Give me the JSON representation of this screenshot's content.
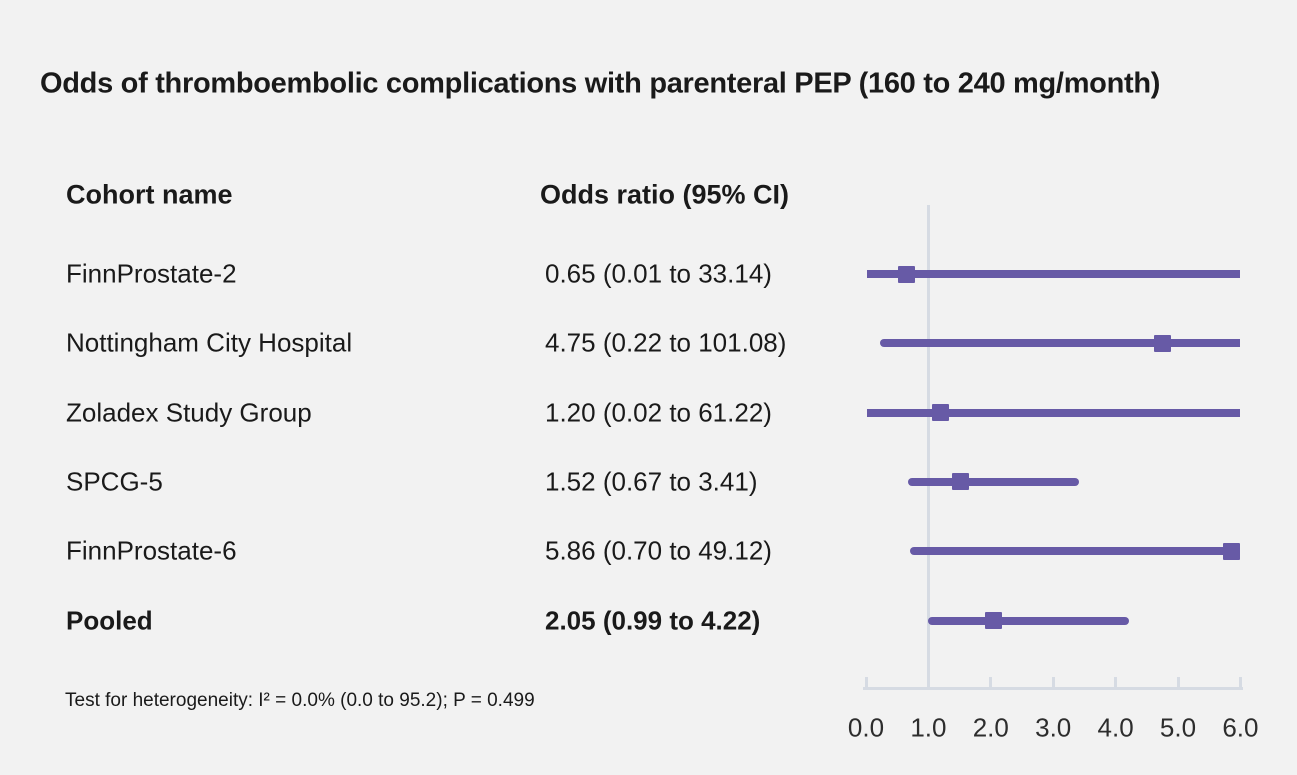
{
  "title": "Odds of thromboembolic complications with parenteral PEP (160 to 240 mg/month)",
  "table": {
    "headers": {
      "cohort": "Cohort name",
      "odds_ratio": "Odds ratio (95% CI)"
    }
  },
  "footnote": "Test for heterogeneity: I² = 0.0% (0.0 to 95.2); P = 0.499",
  "chart_data": {
    "type": "forest",
    "title": "Odds of thromboembolic complications with parenteral PEP (160 to 240 mg/month)",
    "rows": [
      {
        "cohort": "FinnProstate-2",
        "or": 0.65,
        "ci_low": 0.01,
        "ci_high": 33.14,
        "label": "0.65 (0.01 to 33.14)",
        "bold": false
      },
      {
        "cohort": "Nottingham City Hospital",
        "or": 4.75,
        "ci_low": 0.22,
        "ci_high": 101.08,
        "label": "4.75 (0.22 to 101.08)",
        "bold": false
      },
      {
        "cohort": "Zoladex Study Group",
        "or": 1.2,
        "ci_low": 0.02,
        "ci_high": 61.22,
        "label": "1.20 (0.02 to 61.22)",
        "bold": false
      },
      {
        "cohort": "SPCG-5",
        "or": 1.52,
        "ci_low": 0.67,
        "ci_high": 3.41,
        "label": "1.52 (0.67 to 3.41)",
        "bold": false
      },
      {
        "cohort": "FinnProstate-6",
        "or": 5.86,
        "ci_low": 0.7,
        "ci_high": 49.12,
        "label": "5.86 (0.70 to 49.12)",
        "bold": false
      },
      {
        "cohort": "Pooled",
        "or": 2.05,
        "ci_low": 0.99,
        "ci_high": 4.22,
        "label": "2.05 (0.99 to 4.22)",
        "bold": true
      }
    ],
    "x_axis": {
      "min": 0,
      "max": 6,
      "tick_labels": [
        "0.0",
        "1.0",
        "2.0",
        "3.0",
        "4.0",
        "5.0",
        "6.0"
      ],
      "tick_values": [
        0,
        1,
        2,
        3,
        4,
        5,
        6
      ],
      "reference_line": 1.0
    },
    "layout_hints": {
      "grid": false,
      "legend": "none",
      "ci_clipped_at_max": true
    },
    "colors": {
      "marker": "#675aa6",
      "ci_line": "#675aa6",
      "axis": "#d6dbe3",
      "reference_line": "#d6dbe3",
      "background": "#f2f2f2",
      "text": "#1a1a1a"
    }
  }
}
